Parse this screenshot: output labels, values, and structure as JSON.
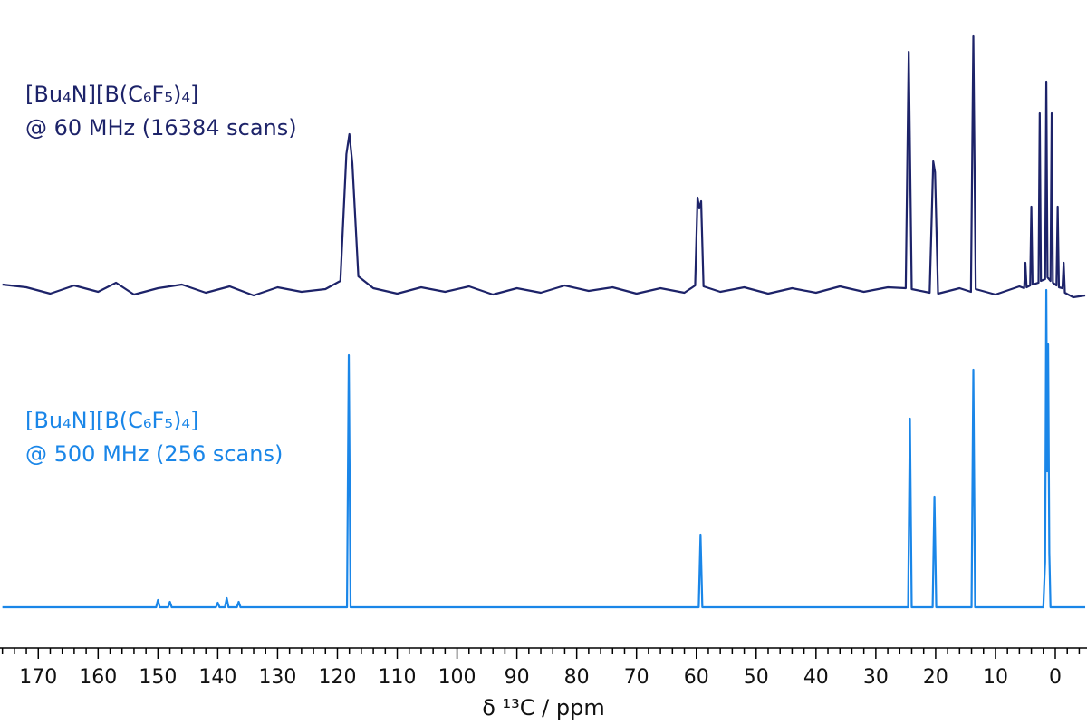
{
  "chart_data": [
    {
      "type": "line",
      "title": "[Bu₄N][B(C₆F₅)₄]",
      "subtitle": "@ 60 MHz (16384 scans)",
      "color": "#1d2369",
      "xlim": [
        176.4,
        -5.3
      ],
      "ylim": [
        -10,
        280
      ],
      "x": [
        176,
        172,
        168,
        164,
        160,
        157,
        154,
        150,
        146,
        142,
        138,
        134,
        130,
        126,
        122,
        119.5,
        118.5,
        118,
        117.5,
        116.5,
        114,
        110,
        106,
        102,
        98,
        94,
        90,
        86,
        82,
        78,
        74,
        70,
        66,
        62,
        60.2,
        59.8,
        59.5,
        59.2,
        58.8,
        56,
        52,
        48,
        44,
        40,
        36,
        32,
        28,
        25,
        24.5,
        24,
        21,
        20.4,
        20.1,
        19.6,
        16,
        14.1,
        13.7,
        13.3,
        10,
        6,
        5.2,
        5,
        4.8,
        4.2,
        4.0,
        3.8,
        2.8,
        2.6,
        2.4,
        1.7,
        1.5,
        1.3,
        0.8,
        0.6,
        0.4,
        -0.2,
        -0.4,
        -0.6,
        -1.2,
        -1.4,
        -1.6,
        -3,
        -5
      ],
      "values": [
        6,
        3,
        -4,
        5,
        -2,
        8,
        -5,
        2,
        6,
        -3,
        4,
        -6,
        3,
        -2,
        1,
        10,
        150,
        172,
        140,
        15,
        2,
        -4,
        3,
        -2,
        4,
        -5,
        2,
        -3,
        5,
        -1,
        3,
        -4,
        2,
        -3,
        5,
        102,
        90,
        98,
        4,
        -2,
        3,
        -4,
        2,
        -3,
        4,
        -2,
        3,
        2,
        263,
        1,
        -3,
        142,
        130,
        -4,
        2,
        -2,
        280,
        1,
        -5,
        4,
        2,
        30,
        3,
        5,
        92,
        6,
        8,
        195,
        10,
        12,
        230,
        14,
        10,
        195,
        8,
        5,
        92,
        3,
        2,
        30,
        -3,
        -8,
        -6
      ]
    },
    {
      "type": "line",
      "title": "[Bu₄N][B(C₆F₅)₄]",
      "subtitle": "@ 500 MHz (256 scans)",
      "color": "#1a86e8",
      "xlim": [
        176.4,
        -5.3
      ],
      "ylim": [
        -10,
        350
      ],
      "x": [
        176,
        152,
        150.3,
        150,
        149.7,
        148.3,
        148,
        147.7,
        140.3,
        140,
        139.7,
        138.8,
        138.5,
        138.2,
        136.8,
        136.5,
        136.2,
        118.4,
        118.1,
        117.8,
        59.6,
        59.3,
        59,
        24.6,
        24.3,
        24,
        20.5,
        20.2,
        19.9,
        14,
        13.7,
        13.4,
        2,
        1.7,
        1.5,
        1.35,
        1.2,
        1.0,
        0.8,
        -5
      ],
      "values": [
        0,
        0,
        0,
        8,
        0,
        0,
        6,
        0,
        0,
        5,
        0,
        0,
        10,
        0,
        0,
        6,
        0,
        0,
        278,
        0,
        0,
        80,
        0,
        0,
        208,
        0,
        0,
        122,
        0,
        0,
        262,
        0,
        0,
        50,
        350,
        150,
        290,
        60,
        0,
        0
      ],
      "xlabel": "δ ¹³C / ppm",
      "xticks": [
        170,
        160,
        150,
        140,
        130,
        120,
        110,
        100,
        90,
        80,
        70,
        60,
        50,
        40,
        30,
        20,
        10,
        0
      ],
      "xminorticks": [
        176,
        174,
        172,
        168,
        166,
        164,
        162,
        158,
        156,
        154,
        152,
        148,
        146,
        144,
        142,
        138,
        136,
        134,
        132,
        128,
        126,
        124,
        122,
        118,
        116,
        114,
        112,
        108,
        106,
        104,
        102,
        98,
        96,
        94,
        92,
        88,
        86,
        84,
        82,
        78,
        76,
        74,
        72,
        68,
        66,
        64,
        62,
        58,
        56,
        54,
        52,
        48,
        46,
        44,
        42,
        38,
        36,
        34,
        32,
        28,
        26,
        24,
        22,
        18,
        16,
        14,
        12,
        8,
        6,
        4,
        2,
        -2,
        -4
      ]
    }
  ]
}
